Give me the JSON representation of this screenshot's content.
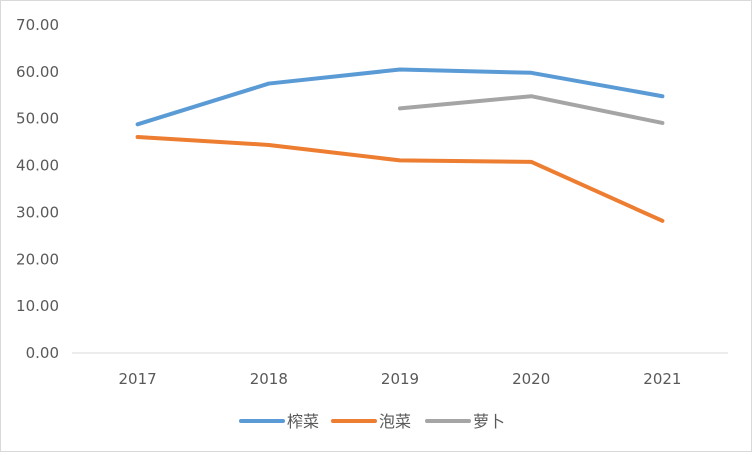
{
  "chart_data": {
    "type": "line",
    "title": "",
    "xlabel": "",
    "ylabel": "",
    "categories": [
      "2017",
      "2018",
      "2019",
      "2020",
      "2021"
    ],
    "ylim": [
      0,
      70
    ],
    "ytick_labels": [
      "0.00",
      "10.00",
      "20.00",
      "30.00",
      "40.00",
      "50.00",
      "60.00",
      "70.00"
    ],
    "grid": false,
    "legend_position": "bottom",
    "series": [
      {
        "name": "榨菜",
        "color": "#5b9bd5",
        "values": [
          48.8,
          57.5,
          60.5,
          59.8,
          54.8
        ]
      },
      {
        "name": "泡菜",
        "color": "#ed7d31",
        "values": [
          46.1,
          44.4,
          41.1,
          40.8,
          28.2
        ]
      },
      {
        "name": "萝卜",
        "color": "#a5a5a5",
        "values": [
          null,
          null,
          52.2,
          54.8,
          49.1
        ]
      }
    ]
  }
}
